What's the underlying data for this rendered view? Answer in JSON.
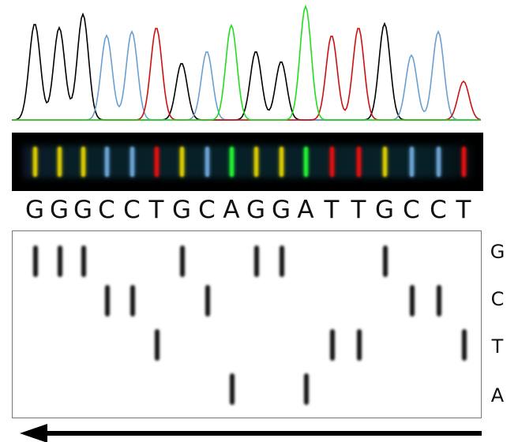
{
  "sequence": [
    "G",
    "G",
    "G",
    "C",
    "C",
    "T",
    "G",
    "C",
    "A",
    "G",
    "G",
    "A",
    "T",
    "T",
    "G",
    "C",
    "C",
    "T"
  ],
  "gel_rows": [
    "G",
    "C",
    "T",
    "A"
  ],
  "colors": {
    "chromatogram": {
      "G": "#000000",
      "C": "#6a9fd0",
      "T": "#cc1111",
      "A": "#22dd22"
    },
    "capillary": {
      "G": "#d8c800",
      "C": "#6aa0d0",
      "T": "#dd1010",
      "A": "#20ee30"
    },
    "gel_band": "#111111",
    "capillary_background": "#000000"
  },
  "arrow_direction": "left"
}
